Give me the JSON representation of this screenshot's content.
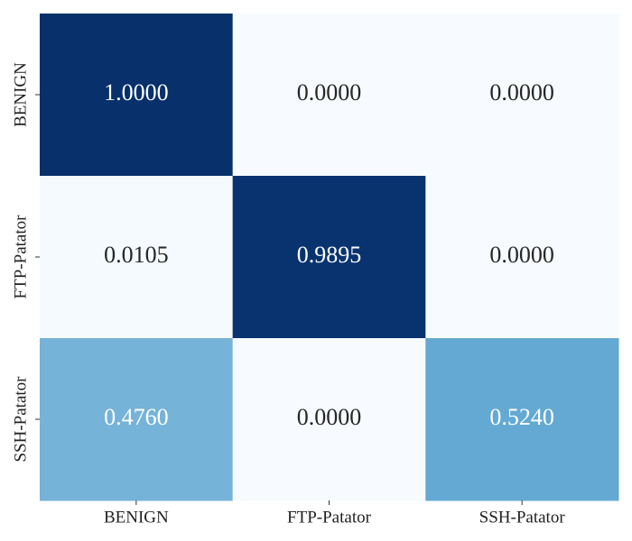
{
  "chart_data": {
    "type": "heatmap",
    "row_categories": [
      "BENIGN",
      "FTP-Patator",
      "SSH-Patator"
    ],
    "col_categories": [
      "BENIGN",
      "FTP-Patator",
      "SSH-Patator"
    ],
    "values": [
      [
        1.0,
        0.0,
        0.0
      ],
      [
        0.0105,
        0.9895,
        0.0
      ],
      [
        0.476,
        0.0,
        0.524
      ]
    ],
    "value_labels": [
      [
        "1.0000",
        "0.0000",
        "0.0000"
      ],
      [
        "0.0105",
        "0.9895",
        "0.0000"
      ],
      [
        "0.4760",
        "0.0000",
        "0.5240"
      ]
    ],
    "colormap": "Blues"
  }
}
